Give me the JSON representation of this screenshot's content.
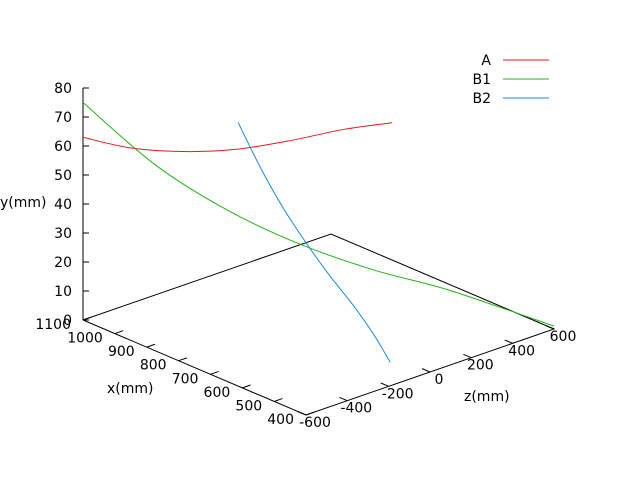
{
  "chart_data": {
    "type": "line",
    "title": "",
    "xlabel": "x(mm)",
    "ylabel": "y(mm)",
    "zlabel": "z(mm)",
    "x_ticks": [
      "1100",
      "1000",
      "900",
      "800",
      "700",
      "600",
      "500",
      "400"
    ],
    "y_ticks": [
      "0",
      "10",
      "20",
      "30",
      "40",
      "50",
      "60",
      "70",
      "80"
    ],
    "z_ticks": [
      "-600",
      "-400",
      "-200",
      "0",
      "200",
      "400",
      "600"
    ],
    "xlim": [
      1100,
      400
    ],
    "ylim": [
      0,
      80
    ],
    "zlim": [
      -600,
      600
    ],
    "legend_position": "top-right",
    "series": [
      {
        "name": "A",
        "color": "#e41a1c",
        "points": [
          {
            "x": 1100,
            "y": 63,
            "z": -600
          },
          {
            "x": 1000,
            "y": 62,
            "z": -520
          },
          {
            "x": 900,
            "y": 63,
            "z": -420
          },
          {
            "x": 800,
            "y": 66,
            "z": -320
          },
          {
            "x": 700,
            "y": 71,
            "z": -210
          },
          {
            "x": 600,
            "y": 77,
            "z": -110
          },
          {
            "x": 500,
            "y": 82,
            "z": -30
          }
        ]
      },
      {
        "name": "B1",
        "color": "#29b01e",
        "points": [
          {
            "x": 1100,
            "y": 75,
            "z": -600
          },
          {
            "x": 1000,
            "y": 53,
            "z": -400
          },
          {
            "x": 900,
            "y": 37,
            "z": -200
          },
          {
            "x": 800,
            "y": 25,
            "z": 0
          },
          {
            "x": 700,
            "y": 16,
            "z": 200
          },
          {
            "x": 600,
            "y": 9,
            "z": 400
          },
          {
            "x": 400,
            "y": 1,
            "z": 600
          }
        ]
      },
      {
        "name": "B2",
        "color": "#1f8ad6",
        "points": [
          {
            "x": 600,
            "y": 92,
            "z": -620
          },
          {
            "x": 580,
            "y": 75,
            "z": -540
          },
          {
            "x": 560,
            "y": 60,
            "z": -460
          },
          {
            "x": 540,
            "y": 47,
            "z": -380
          },
          {
            "x": 520,
            "y": 35,
            "z": -300
          },
          {
            "x": 500,
            "y": 24,
            "z": -220
          },
          {
            "x": 480,
            "y": 13,
            "z": -150
          },
          {
            "x": 460,
            "y": 3,
            "z": -100
          }
        ]
      }
    ]
  }
}
